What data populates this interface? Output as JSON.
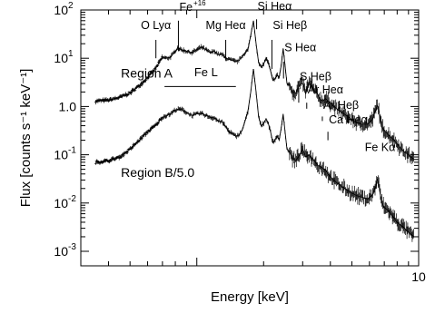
{
  "chart_data": {
    "type": "line",
    "x_scale": "log",
    "y_scale": "log",
    "xlim": [
      0.3,
      10
    ],
    "ylim": [
      0.0005,
      100
    ],
    "xlabel": "Energy [keV]",
    "ylabel": "Flux [counts s⁻¹ keV⁻¹]",
    "x_ticks": [
      {
        "value": 1,
        "label": ""
      },
      {
        "value": 10,
        "label": "10"
      }
    ],
    "x_minor_ticks": [
      0.4,
      0.5,
      0.6,
      0.7,
      0.8,
      0.9,
      2,
      3,
      4,
      5,
      6,
      7,
      8,
      9
    ],
    "y_ticks": [
      {
        "value": 0.001,
        "base": "10",
        "exp": "-3"
      },
      {
        "value": 0.01,
        "base": "10",
        "exp": "-2"
      },
      {
        "value": 0.1,
        "base": "10",
        "exp": "-1"
      },
      {
        "value": 1,
        "base": "1.0",
        "exp": ""
      },
      {
        "value": 10,
        "base": "10",
        "exp": "1"
      },
      {
        "value": 100,
        "base": "10",
        "exp": "2"
      }
    ],
    "series": [
      {
        "name": "Region A",
        "label_pos": {
          "x": 0.455,
          "y": 4.0
        },
        "x": [
          0.35,
          0.4,
          0.45,
          0.5,
          0.55,
          0.6,
          0.65,
          0.68,
          0.7,
          0.73,
          0.76,
          0.8,
          0.82,
          0.85,
          0.9,
          0.95,
          1.0,
          1.05,
          1.1,
          1.15,
          1.2,
          1.25,
          1.3,
          1.35,
          1.4,
          1.45,
          1.5,
          1.55,
          1.6,
          1.65,
          1.7,
          1.75,
          1.8,
          1.85,
          1.9,
          1.95,
          2.0,
          2.05,
          2.1,
          2.15,
          2.2,
          2.25,
          2.3,
          2.35,
          2.4,
          2.45,
          2.5,
          2.55,
          2.6,
          2.65,
          2.7,
          2.8,
          2.9,
          3.0,
          3.1,
          3.2,
          3.3,
          3.4,
          3.5,
          3.6,
          3.7,
          3.8,
          3.9,
          4.0,
          4.2,
          4.5,
          4.8,
          5.0,
          5.3,
          5.6,
          5.9,
          6.2,
          6.4,
          6.5,
          6.6,
          6.7,
          6.8,
          7.0,
          7.3,
          7.6,
          8.0,
          8.5,
          9.0,
          9.5
        ],
        "values": [
          1.3,
          1.35,
          1.55,
          1.9,
          2.7,
          4.0,
          6.0,
          8.5,
          10.5,
          10,
          10.5,
          14,
          16.5,
          15,
          14,
          13,
          15,
          17,
          15,
          13,
          14,
          12,
          12,
          10,
          9.5,
          9,
          8.5,
          9,
          11,
          13,
          15,
          30,
          60,
          20,
          8,
          6.5,
          7.5,
          10,
          8,
          5.5,
          3.5,
          3.8,
          4.5,
          4.0,
          7.0,
          16,
          7,
          3.0,
          2.8,
          2.6,
          2.0,
          1.9,
          2.8,
          3.0,
          1.9,
          3.2,
          2.6,
          2.1,
          1.8,
          1.4,
          1.3,
          1.45,
          1.3,
          1.2,
          0.95,
          0.75,
          0.62,
          0.52,
          0.45,
          0.43,
          0.43,
          0.55,
          0.85,
          1.05,
          0.95,
          0.55,
          0.38,
          0.32,
          0.26,
          0.22,
          0.17,
          0.12,
          0.1,
          0.08
        ]
      },
      {
        "name": "Region B/5.0",
        "label_pos": {
          "x": 0.455,
          "y": 0.035
        },
        "x": [
          0.35,
          0.4,
          0.45,
          0.5,
          0.55,
          0.6,
          0.65,
          0.7,
          0.73,
          0.76,
          0.8,
          0.85,
          0.9,
          0.95,
          1.0,
          1.05,
          1.1,
          1.15,
          1.2,
          1.25,
          1.3,
          1.35,
          1.4,
          1.45,
          1.5,
          1.55,
          1.6,
          1.65,
          1.7,
          1.75,
          1.8,
          1.85,
          1.9,
          1.95,
          2.0,
          2.05,
          2.1,
          2.15,
          2.2,
          2.25,
          2.3,
          2.35,
          2.4,
          2.45,
          2.5,
          2.55,
          2.6,
          2.7,
          2.8,
          2.9,
          3.0,
          3.1,
          3.2,
          3.3,
          3.4,
          3.5,
          3.6,
          3.7,
          3.8,
          3.9,
          4.0,
          4.2,
          4.5,
          4.8,
          5.0,
          5.3,
          5.6,
          5.9,
          6.2,
          6.4,
          6.5,
          6.6,
          6.7,
          6.8,
          7.0,
          7.3,
          7.6,
          8.0,
          8.5,
          9.0,
          9.5
        ],
        "values": [
          0.07,
          0.075,
          0.09,
          0.13,
          0.2,
          0.3,
          0.4,
          0.6,
          0.65,
          0.7,
          0.85,
          0.88,
          0.75,
          0.65,
          0.7,
          0.72,
          0.65,
          0.6,
          0.58,
          0.5,
          0.48,
          0.38,
          0.3,
          0.27,
          0.24,
          0.26,
          0.32,
          0.5,
          0.8,
          2.0,
          6.0,
          2.0,
          0.6,
          0.4,
          0.45,
          0.55,
          0.45,
          0.3,
          0.18,
          0.2,
          0.25,
          0.2,
          0.35,
          0.7,
          0.3,
          0.13,
          0.12,
          0.085,
          0.075,
          0.1,
          0.13,
          0.09,
          0.1,
          0.085,
          0.075,
          0.06,
          0.058,
          0.052,
          0.048,
          0.04,
          0.035,
          0.028,
          0.022,
          0.018,
          0.016,
          0.014,
          0.013,
          0.012,
          0.015,
          0.022,
          0.032,
          0.026,
          0.016,
          0.011,
          0.008,
          0.007,
          0.0055,
          0.004,
          0.0032,
          0.0025,
          0.002
        ]
      }
    ],
    "annotations": [
      {
        "text": "O Lyα",
        "x": 0.654,
        "y": 40,
        "line_from": 24,
        "line_to": 10
      },
      {
        "text": "Fe",
        "sup": "+16",
        "x": 0.826,
        "y": 95,
        "line_from": 60,
        "line_to": 14
      },
      {
        "text": "Mg Heα",
        "x": 1.35,
        "y": 40,
        "line_from": 24,
        "line_to": 9
      },
      {
        "text": "Si Heα",
        "x": 1.86,
        "y": 100,
        "line_from": 64,
        "line_to": 40
      },
      {
        "text": "Si Heβ",
        "x": 2.18,
        "y": 40,
        "line_from": 24,
        "line_to": 6
      },
      {
        "text": "S Heα",
        "x": 2.46,
        "y": 14,
        "line_from": 8.5,
        "line_to": 3.8
      },
      {
        "text": "S Heβ",
        "x": 2.88,
        "y": 3.5,
        "line_from": 2.4,
        "line_to": 1.2
      },
      {
        "text": "Ar Heα",
        "x": 3.13,
        "y": 1.85,
        "line_from": 1.2,
        "line_to": 0.9
      },
      {
        "text": "Ar Heβ",
        "x": 3.68,
        "y": 0.9,
        "line_from": 0.62,
        "line_to": 0.5
      },
      {
        "text": "Ca Heα",
        "x": 3.9,
        "y": 0.45,
        "line_from": 0.3,
        "line_to": 0.2
      },
      {
        "text": "Fe Kα",
        "x": 6.7,
        "y": 0.12,
        "line_from": 0,
        "line_to": 0
      },
      {
        "text": "Fe L",
        "x": 1.1,
        "y": 4.2,
        "bar_from": 0.715,
        "bar_to": 1.5,
        "bar_y": 2.6
      }
    ]
  }
}
